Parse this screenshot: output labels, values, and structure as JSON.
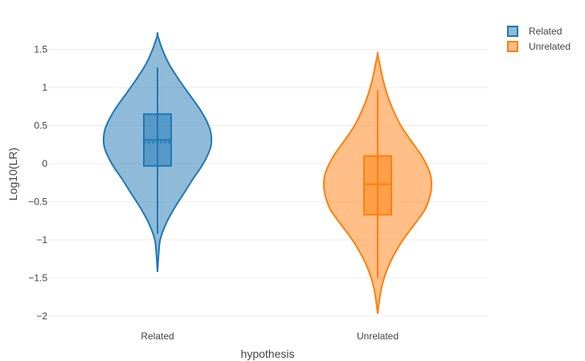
{
  "chart_data": {
    "type": "violin",
    "xlabel": "hypothesis",
    "ylabel": "Log10(LR)",
    "ylim": [
      -2.1,
      1.8
    ],
    "yticks": [
      1.5,
      1,
      0.5,
      0,
      -0.5,
      -1,
      -1.5,
      -2
    ],
    "ytick_labels": [
      "1.5",
      "1",
      "0.5",
      "0",
      "−0.5",
      "−1",
      "−1.5",
      "−2"
    ],
    "categories": [
      "Related",
      "Unrelated"
    ],
    "grid": true,
    "legend_position": "top-right",
    "series": [
      {
        "name": "Related",
        "color": "#1f77b4",
        "violin_min": -1.42,
        "violin_max": 1.69,
        "whisker_low": -0.92,
        "q1": -0.03,
        "median": 0.31,
        "mean": 0.31,
        "q3": 0.65,
        "whisker_high": 1.26,
        "density": [
          [
            -1.42,
            0.0
          ],
          [
            -1.2,
            0.02
          ],
          [
            -1.0,
            0.05
          ],
          [
            -0.8,
            0.15
          ],
          [
            -0.6,
            0.3
          ],
          [
            -0.4,
            0.48
          ],
          [
            -0.2,
            0.66
          ],
          [
            0.0,
            0.85
          ],
          [
            0.2,
            0.98
          ],
          [
            0.35,
            1.0
          ],
          [
            0.5,
            0.95
          ],
          [
            0.7,
            0.8
          ],
          [
            0.9,
            0.6
          ],
          [
            1.1,
            0.4
          ],
          [
            1.3,
            0.22
          ],
          [
            1.5,
            0.09
          ],
          [
            1.69,
            0.0
          ]
        ]
      },
      {
        "name": "Unrelated",
        "color": "#ff7f0e",
        "violin_min": -1.97,
        "violin_max": 1.44,
        "whisker_low": -1.5,
        "q1": -0.67,
        "median": -0.27,
        "mean": -0.27,
        "q3": 0.1,
        "whisker_high": 0.97,
        "density": [
          [
            -1.97,
            0.0
          ],
          [
            -1.8,
            0.03
          ],
          [
            -1.6,
            0.08
          ],
          [
            -1.4,
            0.17
          ],
          [
            -1.2,
            0.3
          ],
          [
            -1.0,
            0.47
          ],
          [
            -0.8,
            0.68
          ],
          [
            -0.6,
            0.88
          ],
          [
            -0.4,
            0.98
          ],
          [
            -0.25,
            1.0
          ],
          [
            -0.1,
            0.96
          ],
          [
            0.1,
            0.82
          ],
          [
            0.3,
            0.62
          ],
          [
            0.5,
            0.43
          ],
          [
            0.7,
            0.29
          ],
          [
            0.9,
            0.18
          ],
          [
            1.1,
            0.1
          ],
          [
            1.3,
            0.04
          ],
          [
            1.44,
            0.0
          ]
        ]
      }
    ]
  }
}
